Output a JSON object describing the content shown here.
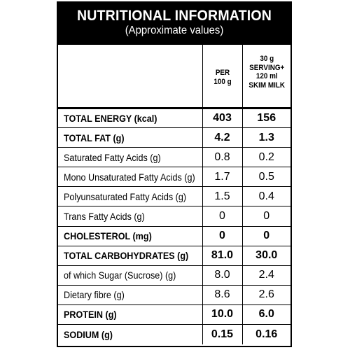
{
  "header": {
    "title": "NUTRITIONAL INFORMATION",
    "subtitle": "(Approximate values)"
  },
  "columns": {
    "per100": [
      "PER",
      "100 g"
    ],
    "serving": [
      "30 g",
      "SERVING+",
      "120 ml",
      "SKIM MILK"
    ]
  },
  "rows": [
    {
      "label": "TOTAL ENERGY (kcal)",
      "per100": "403",
      "serving": "156",
      "bold": true
    },
    {
      "label": "TOTAL FAT (g)",
      "per100": "4.2",
      "serving": "1.3",
      "bold": true
    },
    {
      "label": "Saturated Fatty Acids (g)",
      "per100": "0.8",
      "serving": "0.2",
      "bold": false
    },
    {
      "label": "Mono Unsaturated Fatty Acids (g)",
      "per100": "1.7",
      "serving": "0.5",
      "bold": false
    },
    {
      "label": "Polyunsaturated Fatty Acids (g)",
      "per100": "1.5",
      "serving": "0.4",
      "bold": false
    },
    {
      "label": "Trans Fatty Acids (g)",
      "per100": "0",
      "serving": "0",
      "bold": false
    },
    {
      "label": "CHOLESTEROL (mg)",
      "per100": "0",
      "serving": "0",
      "bold": true
    },
    {
      "label": "TOTAL CARBOHYDRATES (g)",
      "per100": "81.0",
      "serving": "30.0",
      "bold": true
    },
    {
      "label": "of which Sugar (Sucrose) (g)",
      "per100": "8.0",
      "serving": "2.4",
      "bold": false
    },
    {
      "label": "Dietary fibre (g)",
      "per100": "8.6",
      "serving": "2.6",
      "bold": false
    },
    {
      "label": "PROTEIN (g)",
      "per100": "10.0",
      "serving": "6.0",
      "bold": true
    },
    {
      "label": "SODIUM (g)",
      "per100": "0.15",
      "serving": "0.16",
      "bold": true
    }
  ]
}
